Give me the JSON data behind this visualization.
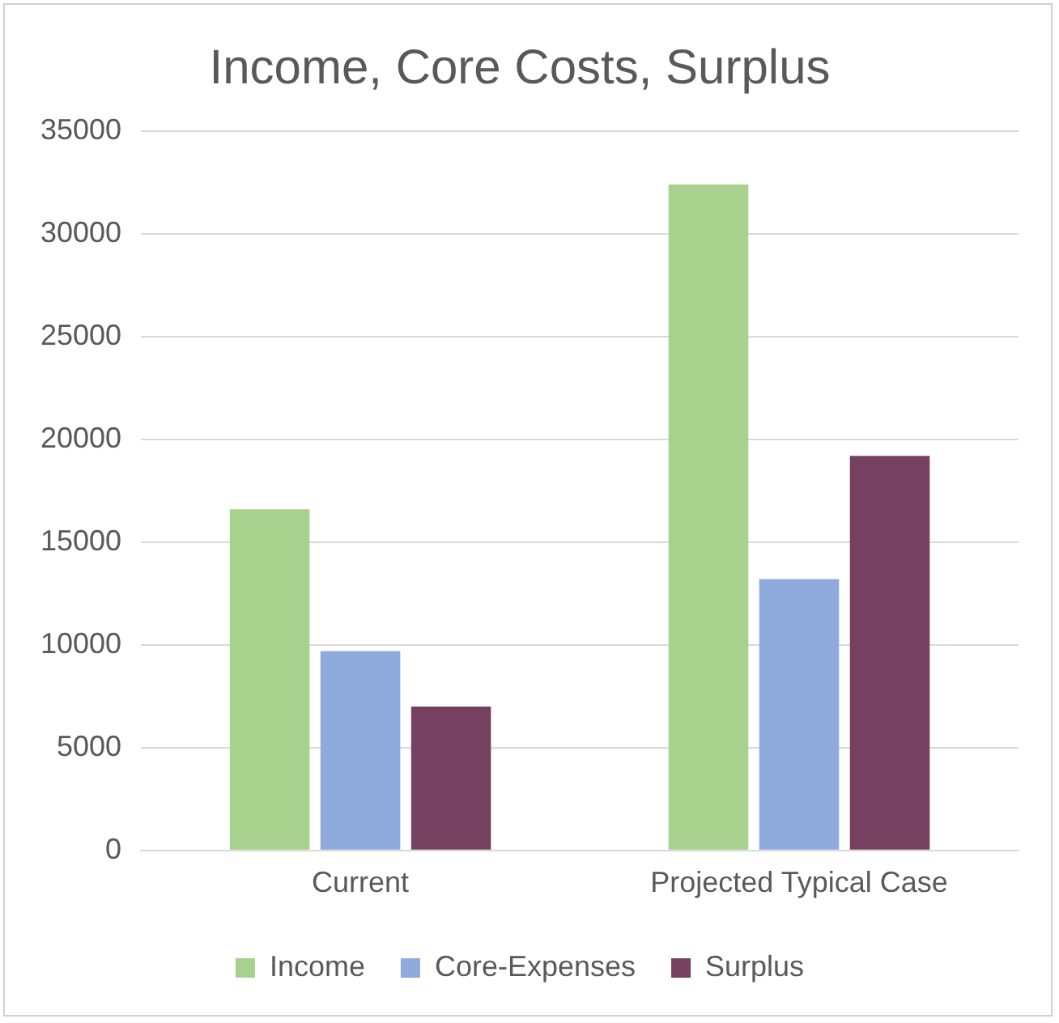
{
  "chart_data": {
    "type": "bar",
    "title": "Income, Core Costs, Surplus",
    "categories": [
      "Current",
      "Projected Typical Case"
    ],
    "series": [
      {
        "name": "Income",
        "color": "#a9d18e",
        "values": [
          16600,
          32400
        ]
      },
      {
        "name": "Core-Expenses",
        "color": "#8faadc",
        "values": [
          9700,
          13200
        ]
      },
      {
        "name": "Surplus",
        "color": "#764161",
        "values": [
          7000,
          19200
        ]
      }
    ],
    "ylim": [
      0,
      35000
    ],
    "yticks": [
      0,
      5000,
      10000,
      15000,
      20000,
      25000,
      30000,
      35000
    ],
    "grid": "y",
    "legend": "bottom"
  }
}
